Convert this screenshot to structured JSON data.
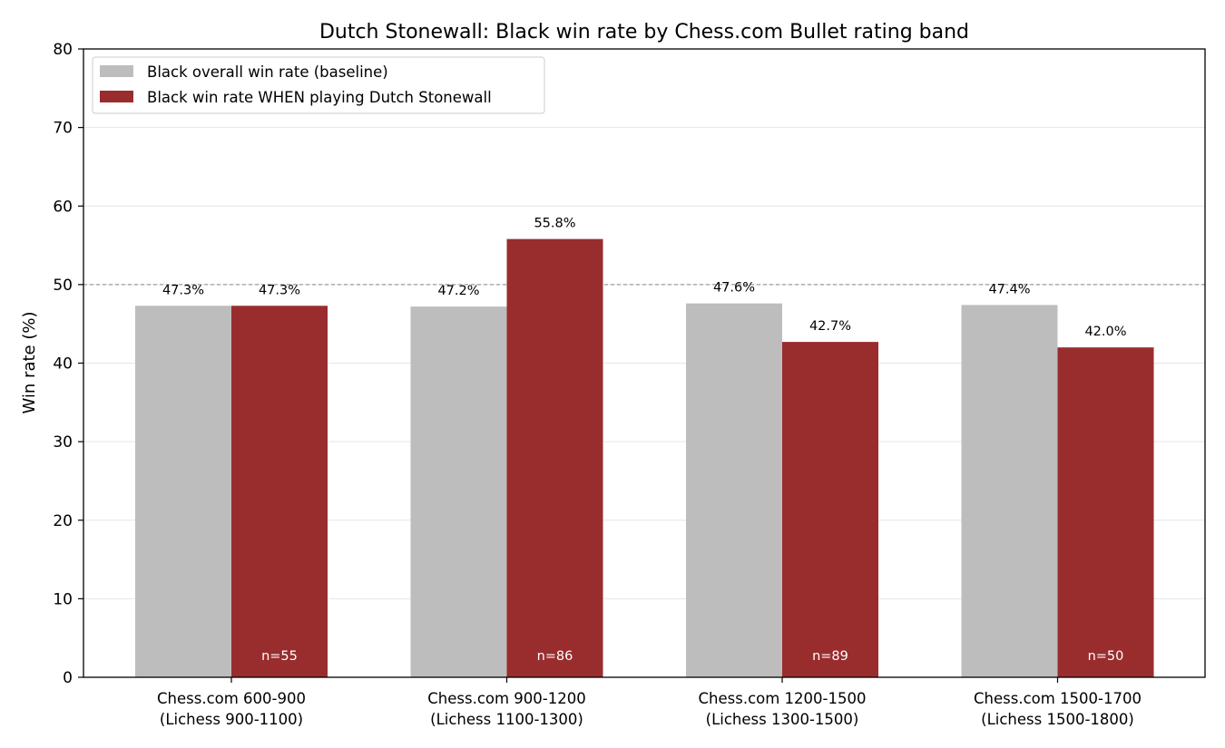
{
  "chart_data": {
    "type": "bar",
    "title": "Dutch Stonewall: Black win rate by Chess.com Bullet rating band",
    "xlabel": "",
    "ylabel": "Win rate (%)",
    "ylim": [
      0,
      80
    ],
    "yticks": [
      0,
      10,
      20,
      30,
      40,
      50,
      60,
      70,
      80
    ],
    "categories": [
      [
        "Chess.com 600-900",
        "(Lichess 900-1100)"
      ],
      [
        "Chess.com 900-1200",
        "(Lichess 1100-1300)"
      ],
      [
        "Chess.com 1200-1500",
        "(Lichess 1300-1500)"
      ],
      [
        "Chess.com 1500-1700",
        "(Lichess 1500-1800)"
      ]
    ],
    "series": [
      {
        "name": "Black overall win rate (baseline)",
        "color": "#bdbdbd",
        "values": [
          47.3,
          47.2,
          47.6,
          47.4
        ],
        "labels": [
          "47.3%",
          "47.2%",
          "47.6%",
          "47.4%"
        ]
      },
      {
        "name": "Black win rate WHEN playing Dutch Stonewall",
        "color": "#992d2e",
        "values": [
          47.3,
          55.8,
          42.7,
          42.0
        ],
        "labels": [
          "47.3%",
          "55.8%",
          "42.7%",
          "42.0%"
        ],
        "sample_sizes": [
          "n=55",
          "n=86",
          "n=89",
          "n=50"
        ]
      }
    ],
    "reference_line": {
      "y": 50,
      "style": "dashed",
      "color": "#888888"
    },
    "grid": "horizontal",
    "legend_position": "top-left"
  }
}
